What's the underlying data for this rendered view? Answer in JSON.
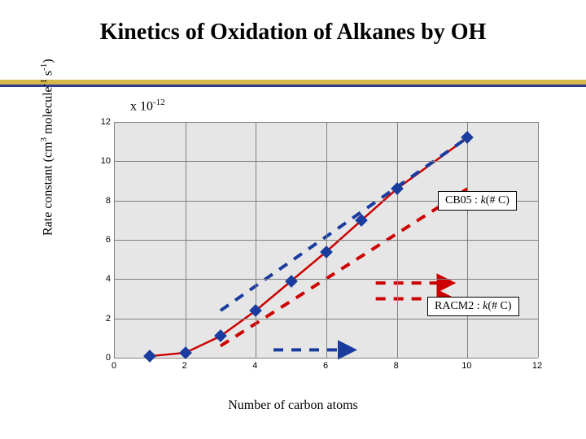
{
  "title": "Kinetics of Oxidation of Alkanes by OH",
  "multiplier": {
    "prefix": "x 10",
    "exp": "-12"
  },
  "y_axis_label": {
    "pre": "Rate constant (cm",
    "sup1": "3",
    "mid": " molecule",
    "sup2": "-1",
    "mid2": " s",
    "sup3": "-1",
    "post": ")"
  },
  "x_axis_label": "Number of carbon atoms",
  "legend_cb05": {
    "name": "CB05 : ",
    "kpart": "k",
    "arg": "(# C)"
  },
  "legend_racm2": {
    "name": "RACM2 : ",
    "kpart": "k",
    "arg": "(# C)"
  },
  "chart": {
    "type": "line-scatter",
    "xlim": [
      0,
      12
    ],
    "ylim": [
      0,
      12
    ],
    "x_ticks": [
      0,
      2,
      4,
      6,
      8,
      10,
      12
    ],
    "y_ticks": [
      0,
      2,
      4,
      6,
      8,
      10,
      12
    ],
    "background_color": "#e6e6e6",
    "grid_color": "#808080",
    "tick_fontsize": 11,
    "series_points": [
      {
        "label": "measured",
        "marker": "diamond",
        "marker_fill": "#1a3c9e",
        "marker_border": "#1a3c9e",
        "pts": [
          [
            1,
            0.08
          ],
          [
            2,
            0.25
          ],
          [
            3,
            1.1
          ],
          [
            4,
            2.4
          ],
          [
            5,
            3.9
          ],
          [
            6,
            5.4
          ],
          [
            7,
            7.0
          ],
          [
            8,
            8.6
          ],
          [
            10,
            11.2
          ]
        ]
      }
    ],
    "series_lines": [
      {
        "label": "trend",
        "color": "#cc0000",
        "width": 2.5,
        "dash": "none",
        "pts": [
          [
            1,
            0.08
          ],
          [
            2,
            0.25
          ],
          [
            3,
            1.1
          ],
          [
            4,
            2.4
          ],
          [
            5,
            3.9
          ],
          [
            6,
            5.4
          ],
          [
            7,
            7.0
          ],
          [
            8,
            8.6
          ],
          [
            10,
            11.2
          ]
        ]
      },
      {
        "label": "CB05",
        "color": "#1a3c9e",
        "width": 4,
        "dash": "12 10",
        "pts": [
          [
            3,
            2.4
          ],
          [
            10,
            11.2
          ]
        ]
      },
      {
        "label": "CB05_small",
        "color": "#1a3c9e",
        "width": 4,
        "dash": "12 10",
        "pts": [
          [
            4.5,
            0.4
          ],
          [
            6.6,
            0.4
          ]
        ],
        "marker_end": true
      },
      {
        "label": "RACM2_left",
        "color": "#cc0000",
        "width": 4,
        "dash": "12 10",
        "pts": [
          [
            3,
            0.6
          ],
          [
            10,
            8.6
          ]
        ]
      },
      {
        "label": "RACM2_small_high",
        "color": "#cc0000",
        "width": 4,
        "dash": "12 10",
        "pts": [
          [
            7.4,
            3.8
          ],
          [
            9.4,
            3.8
          ]
        ],
        "marker_end": true
      },
      {
        "label": "RACM2_small_low",
        "color": "#cc0000",
        "width": 4,
        "dash": "12 10",
        "pts": [
          [
            7.4,
            3.0
          ],
          [
            9.4,
            3.0
          ]
        ],
        "marker_end": true
      }
    ]
  },
  "colors": {
    "gold_rule": "#d6b84b",
    "blue_rule": "#2f3a8f",
    "red": "#cc0000",
    "blue": "#1a3c9e"
  }
}
